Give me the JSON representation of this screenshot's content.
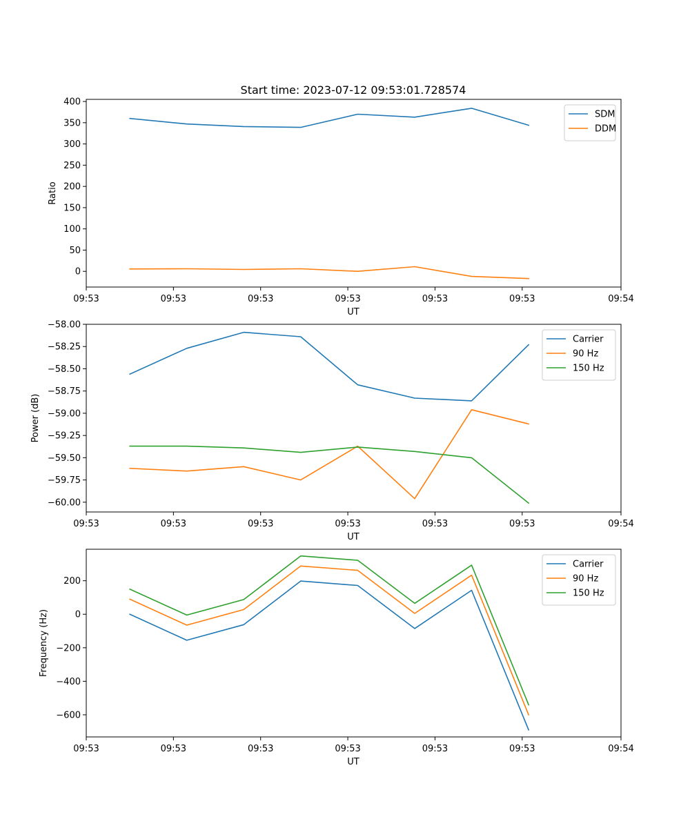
{
  "chart_data": [
    {
      "type": "line",
      "title": "Start time: 2023-07-12 09:53:01.728574",
      "xlabel": "UT",
      "ylabel": "Ratio",
      "xlim": [
        0,
        9.2
      ],
      "xtick_values": [
        0,
        1.5,
        3,
        4.5,
        6,
        7.5,
        9.2
      ],
      "xtick_labels": [
        "09:53",
        "09:53",
        "09:53",
        "09:53",
        "09:53",
        "09:53",
        "09:54"
      ],
      "ylim": [
        -37,
        405
      ],
      "yticks": [
        0,
        50,
        100,
        150,
        200,
        250,
        300,
        350,
        400
      ],
      "ytick_labels": [
        "0",
        "50",
        "100",
        "150",
        "200",
        "250",
        "300",
        "350",
        "400"
      ],
      "legend_position": "upper right",
      "x": [
        0.75,
        1.73,
        2.71,
        3.69,
        4.67,
        5.65,
        6.63,
        7.61
      ],
      "series": [
        {
          "name": "SDM",
          "color": "#1f77b4",
          "values": [
            360,
            347,
            341,
            339,
            370,
            363,
            384,
            344
          ]
        },
        {
          "name": "DDM",
          "color": "#ff7f0e",
          "values": [
            5.5,
            6,
            4.5,
            6,
            0,
            11,
            -12,
            -17
          ]
        }
      ]
    },
    {
      "type": "line",
      "title": "",
      "xlabel": "UT",
      "ylabel": "Power (dB)",
      "xlim": [
        0,
        9.2
      ],
      "xtick_values": [
        0,
        1.5,
        3,
        4.5,
        6,
        7.5,
        9.2
      ],
      "xtick_labels": [
        "09:53",
        "09:53",
        "09:53",
        "09:53",
        "09:53",
        "09:53",
        "09:54"
      ],
      "ylim": [
        -60.11,
        -58.0
      ],
      "yticks": [
        -58.0,
        -58.25,
        -58.5,
        -58.75,
        -59.0,
        -59.25,
        -59.5,
        -59.75,
        -60.0
      ],
      "ytick_labels": [
        "−58.00",
        "−58.25",
        "−58.50",
        "−58.75",
        "−59.00",
        "−59.25",
        "−59.50",
        "−59.75",
        "−60.00"
      ],
      "legend_position": "upper right",
      "x": [
        0.75,
        1.73,
        2.71,
        3.69,
        4.67,
        5.65,
        6.63,
        7.61
      ],
      "series": [
        {
          "name": "Carrier",
          "color": "#1f77b4",
          "values": [
            -58.56,
            -58.27,
            -58.09,
            -58.14,
            -58.68,
            -58.83,
            -58.86,
            -58.23
          ]
        },
        {
          "name": "90 Hz",
          "color": "#ff7f0e",
          "values": [
            -59.62,
            -59.65,
            -59.6,
            -59.75,
            -59.37,
            -59.96,
            -58.96,
            -59.12
          ]
        },
        {
          "name": "150 Hz",
          "color": "#2ca02c",
          "values": [
            -59.37,
            -59.37,
            -59.39,
            -59.44,
            -59.38,
            -59.43,
            -59.5,
            -60.01
          ]
        }
      ]
    },
    {
      "type": "line",
      "title": "",
      "xlabel": "UT",
      "ylabel": "Frequency (Hz)",
      "xlim": [
        0,
        9.2
      ],
      "xtick_values": [
        0,
        1.5,
        3,
        4.5,
        6,
        7.5,
        9.2
      ],
      "xtick_labels": [
        "09:53",
        "09:53",
        "09:53",
        "09:53",
        "09:53",
        "09:53",
        "09:54"
      ],
      "ylim": [
        -732,
        388
      ],
      "yticks": [
        200,
        0,
        -200,
        -400,
        -600
      ],
      "ytick_labels": [
        "200",
        "0",
        "−200",
        "−400",
        "−600"
      ],
      "legend_position": "upper right",
      "x": [
        0.75,
        1.73,
        2.71,
        3.69,
        4.67,
        5.65,
        6.63,
        7.61
      ],
      "series": [
        {
          "name": "Carrier",
          "color": "#1f77b4",
          "values": [
            0,
            -155,
            -62,
            198,
            172,
            -85,
            143,
            -690
          ]
        },
        {
          "name": "90 Hz",
          "color": "#ff7f0e",
          "values": [
            90,
            -65,
            28,
            288,
            262,
            5,
            233,
            -600
          ]
        },
        {
          "name": "150 Hz",
          "color": "#2ca02c",
          "values": [
            150,
            -5,
            88,
            348,
            322,
            65,
            293,
            -540
          ]
        }
      ]
    }
  ]
}
